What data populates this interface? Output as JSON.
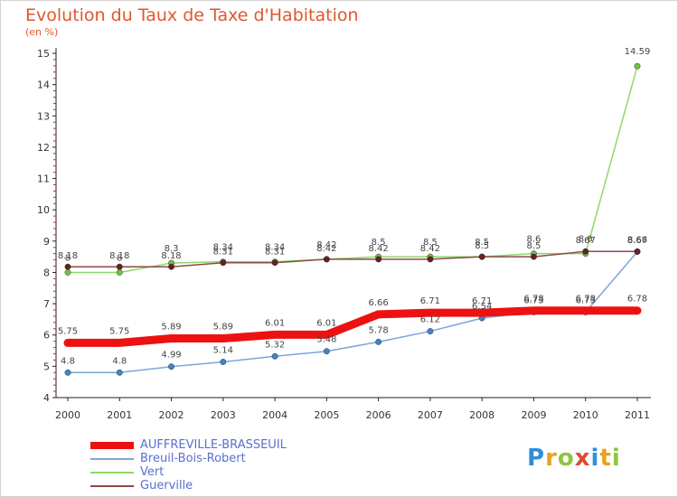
{
  "header": {
    "title": "Evolution du Taux de Taxe d'Habitation",
    "subtitle": "(en %)"
  },
  "logo": {
    "text": "Proxiti",
    "colors": [
      "#2f8fd8",
      "#e8a21f",
      "#8dc63f",
      "#e04a2f",
      "#2f8fd8",
      "#e8a21f",
      "#8dc63f"
    ]
  },
  "chart_data": {
    "type": "line",
    "title": "Evolution du Taux de Taxe d'Habitation",
    "subtitle": "(en %)",
    "xlabel": "",
    "ylabel": "",
    "x": [
      "2000",
      "2001",
      "2002",
      "2003",
      "2004",
      "2005",
      "2006",
      "2007",
      "2008",
      "2009",
      "2010",
      "2011"
    ],
    "ylim": [
      4,
      15
    ],
    "yticks": [
      "4",
      "5",
      "6",
      "7",
      "8",
      "9",
      "10",
      "11",
      "12",
      "13",
      "14",
      "15"
    ],
    "grid": false,
    "legend_position": "bottom-left",
    "series": [
      {
        "name": "AUFFREVILLE-BRASSEUIL",
        "color": "#ee1111",
        "values": [
          5.75,
          5.75,
          5.89,
          5.89,
          6.01,
          6.01,
          6.66,
          6.71,
          6.71,
          6.78,
          6.78,
          6.78
        ],
        "labels": [
          "5.75",
          "5.75",
          "5.89",
          "5.89",
          "6.01",
          "6.01",
          "6.66",
          "6.71",
          "6.71",
          "6.78",
          "6.78",
          "6.78"
        ]
      },
      {
        "name": "Breuil-Bois-Robert",
        "color": "#7aa6d8",
        "marker_color": "#3f86c8",
        "values": [
          4.8,
          4.8,
          4.99,
          5.14,
          5.32,
          5.48,
          5.78,
          6.12,
          6.54,
          6.73,
          6.73,
          8.66
        ],
        "labels": [
          "4.8",
          "4.8",
          "4.99",
          "5.14",
          "5.32",
          "5.48",
          "5.78",
          "6.12",
          "6.54",
          "6.73",
          "6.73",
          "8.66"
        ]
      },
      {
        "name": "Vert",
        "color": "#8ed868",
        "marker_color": "#6cc440",
        "values": [
          8.0,
          8.0,
          8.3,
          8.34,
          8.34,
          8.42,
          8.5,
          8.5,
          8.5,
          8.6,
          8.6,
          14.59
        ],
        "labels": [
          "8",
          "8",
          "8.3",
          "8.34",
          "8.34",
          "8.42",
          "8.5",
          "8.5",
          "8.5",
          "8.6",
          "8.6",
          "14.59"
        ]
      },
      {
        "name": "Guerville",
        "color": "#8a4a4a",
        "marker_color": "#6b1f1f",
        "values": [
          8.18,
          8.18,
          8.18,
          8.31,
          8.31,
          8.42,
          8.42,
          8.42,
          8.5,
          8.5,
          8.67,
          8.67
        ],
        "labels": [
          "8.18",
          "8.18",
          "8.18",
          "8.31",
          "8.31",
          "8.42",
          "8.42",
          "8.42",
          "8.5",
          "8.5",
          "8.67",
          "8.67"
        ]
      }
    ]
  }
}
